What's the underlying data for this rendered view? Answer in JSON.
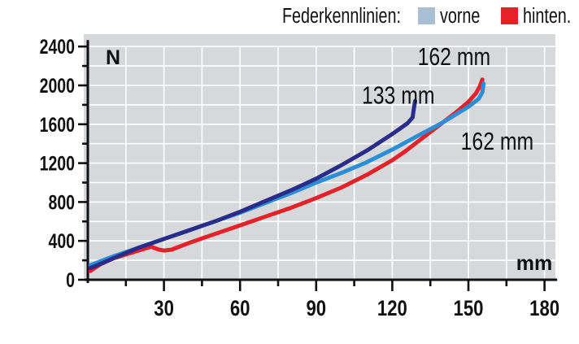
{
  "chart_data": {
    "type": "line",
    "title": "Federkennlinien:",
    "xlabel": "mm",
    "ylabel": "N",
    "xlim": [
      0,
      185
    ],
    "ylim": [
      0,
      2400
    ],
    "x_ticks": [
      30,
      60,
      90,
      120,
      150,
      180
    ],
    "y_ticks": [
      0,
      400,
      800,
      1200,
      1600,
      2000,
      2400
    ],
    "grid": true,
    "legend": [
      {
        "label": "vorne",
        "color": "#a9bfd3"
      },
      {
        "label": "hinten.",
        "color": "#e8202a"
      }
    ],
    "series": [
      {
        "name": "hinten 162 mm",
        "color": "#e8202a",
        "x": [
          1,
          5,
          10,
          15,
          20,
          25,
          28,
          30,
          33,
          40,
          50,
          60,
          70,
          80,
          90,
          100,
          110,
          120,
          125,
          130,
          135,
          140,
          145,
          150,
          153,
          154.5,
          155.5
        ],
        "y": [
          90,
          160,
          220,
          260,
          300,
          340,
          310,
          300,
          310,
          380,
          470,
          560,
          650,
          740,
          840,
          950,
          1080,
          1230,
          1320,
          1420,
          1520,
          1620,
          1720,
          1830,
          1920,
          1990,
          2060
        ]
      },
      {
        "name": "vorne 162 mm",
        "color": "#2a8fd8",
        "x": [
          1,
          10,
          20,
          30,
          40,
          50,
          60,
          70,
          80,
          90,
          100,
          110,
          120,
          130,
          140,
          150,
          154,
          155.5,
          156
        ],
        "y": [
          150,
          240,
          330,
          420,
          510,
          600,
          690,
          790,
          890,
          1000,
          1100,
          1210,
          1340,
          1480,
          1620,
          1780,
          1860,
          1930,
          2020
        ]
      },
      {
        "name": "vorne 133 mm",
        "color": "#2a2c8c",
        "x": [
          1,
          10,
          20,
          30,
          40,
          50,
          60,
          70,
          80,
          90,
          100,
          110,
          120,
          126,
          128,
          128.5,
          129
        ],
        "y": [
          120,
          220,
          330,
          420,
          510,
          600,
          700,
          810,
          920,
          1040,
          1180,
          1330,
          1500,
          1610,
          1670,
          1760,
          1840
        ]
      }
    ],
    "annotations": [
      {
        "text": "162 mm",
        "x": 130,
        "y": 2210
      },
      {
        "text": "133 mm",
        "x": 108,
        "y": 1810
      },
      {
        "text": "162 mm",
        "x": 147,
        "y": 1340
      }
    ]
  }
}
